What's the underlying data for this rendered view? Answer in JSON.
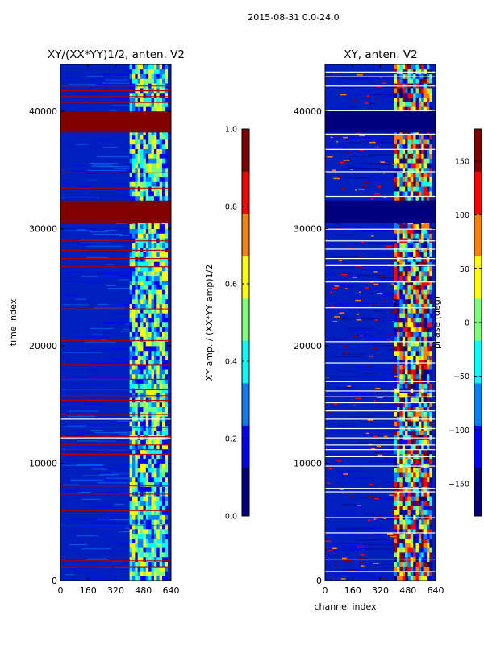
{
  "colors": {
    "jet": [
      "#00007f",
      "#0000ff",
      "#007fff",
      "#00ffff",
      "#7fff7f",
      "#ffff00",
      "#ff7f00",
      "#ff0000",
      "#7f0000"
    ],
    "baseline": "#001fbf",
    "band_red": "#800000",
    "flag_red": "#b40000",
    "flag_white": "#ffffff",
    "frame": "#000000"
  },
  "chart_data": [
    {
      "type": "heatmap",
      "panel": "left",
      "title": "XY/(XX*YY)1/2, anten. V2",
      "suptitle": "2015-08-31 0.0-24.0",
      "xlabel": "",
      "ylabel": "time index",
      "x_range": [
        0,
        640
      ],
      "y_range": [
        0,
        44000
      ],
      "x_ticks": [
        0,
        160,
        320,
        480,
        640
      ],
      "y_ticks": [
        0,
        10000,
        20000,
        30000,
        40000
      ],
      "value_range": [
        0.0,
        1.0
      ],
      "colorbar": {
        "label": "XY amp. / (XX*YY amp)1/2",
        "ticks": [
          "0.0",
          "0.2",
          "0.4",
          "0.6",
          "0.8",
          "1.0"
        ]
      },
      "active_channel_band": [
        400,
        620
      ],
      "saturated_bands": [
        [
          38200,
          40000
        ],
        [
          30500,
          32400
        ]
      ],
      "flagged_rows": [
        1200,
        1700,
        4700,
        6000,
        7400,
        8100,
        10800,
        11200,
        11600,
        12300,
        13100,
        14200,
        15400,
        15800,
        16300,
        17200,
        18400,
        20500,
        23200,
        26800,
        27500,
        28200,
        29000,
        33500,
        34800,
        40800,
        41300,
        41800,
        42200
      ],
      "white_rows": [
        13800,
        12200
      ]
    },
    {
      "type": "heatmap",
      "panel": "right",
      "title": "XY, anten. V2",
      "xlabel": "channel index",
      "ylabel": "",
      "x_range": [
        0,
        640
      ],
      "y_range": [
        0,
        44000
      ],
      "x_ticks": [
        0,
        160,
        320,
        480,
        640
      ],
      "y_ticks": [
        0,
        10000,
        20000,
        30000,
        40000
      ],
      "value_range": [
        -180,
        180
      ],
      "colorbar": {
        "label": "phase (deg)",
        "ticks": [
          "−150",
          "−100",
          "−50",
          "0",
          "50",
          "100",
          "150"
        ]
      },
      "active_channel_band": [
        400,
        620
      ],
      "flagged_bands": [
        [
          38200,
          40000
        ],
        [
          30500,
          32400
        ]
      ],
      "white_rows": [
        800,
        1800,
        4100,
        5400,
        7600,
        7900,
        9800,
        10600,
        11200,
        11600,
        12200,
        13000,
        13800,
        14500,
        15200,
        15700,
        16200,
        17000,
        18600,
        20400,
        23300,
        25500,
        26900,
        27500,
        28300,
        29000,
        30000,
        32800,
        34900,
        36800,
        38100,
        40100,
        42200,
        43000,
        43400
      ]
    }
  ]
}
